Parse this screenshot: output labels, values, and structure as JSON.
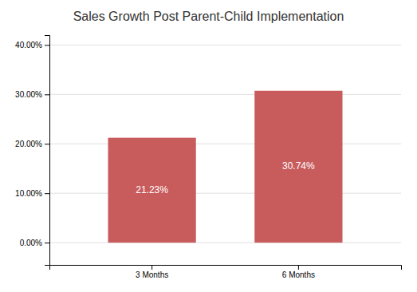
{
  "chart_data": {
    "type": "bar",
    "title": "Sales Growth Post Parent-Child Implementation",
    "categories": [
      "3 Months",
      "6 Months"
    ],
    "values": [
      0.2123,
      0.3074
    ],
    "value_labels": [
      "21.23%",
      "30.74%"
    ],
    "data_labels": true,
    "color": "#C85C5C",
    "ylim": [
      -0.045,
      0.42
    ],
    "yticks": [
      {
        "value": 0.0,
        "label": "0.00%"
      },
      {
        "value": 0.1,
        "label": "10.00%"
      },
      {
        "value": 0.2,
        "label": "20.00%"
      },
      {
        "value": 0.3,
        "label": "30.00%"
      },
      {
        "value": 0.4,
        "label": "40.00%"
      }
    ],
    "grid": true
  }
}
